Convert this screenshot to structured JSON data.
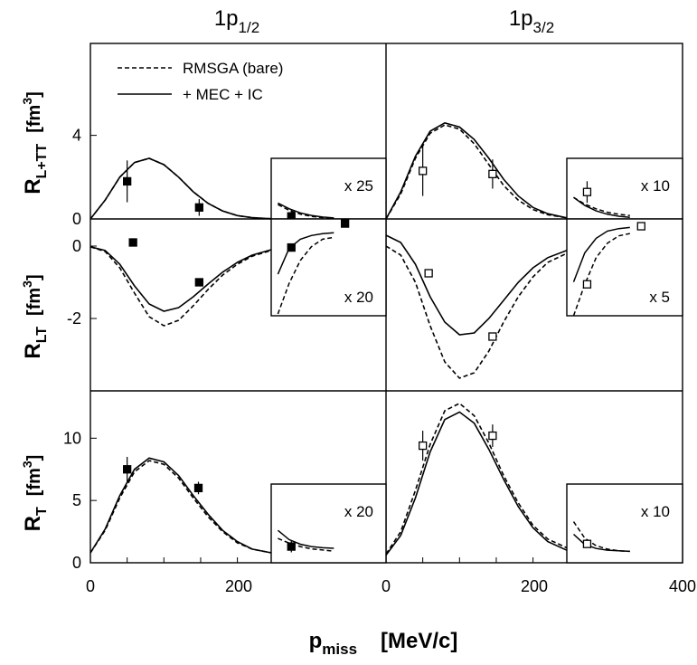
{
  "figure": {
    "col_titles": [
      {
        "main": "1p",
        "sub": "1/2"
      },
      {
        "main": "1p",
        "sub": "3/2"
      }
    ],
    "row_labels": [
      {
        "main": "R",
        "sub": "L+TT",
        "unit": "[fm",
        "unit_sup": "3",
        "unit_close": "]"
      },
      {
        "main": "R",
        "sub": "LT",
        "unit": "[fm",
        "unit_sup": "3",
        "unit_close": "]"
      },
      {
        "main": "R",
        "sub": "T",
        "unit": "[fm",
        "unit_sup": "3",
        "unit_close": "]"
      }
    ],
    "xlabel": {
      "main": "p",
      "sub": "miss",
      "unit": "[MeV/c]"
    },
    "legend": [
      {
        "label": "RMSGA (bare)",
        "style": "dashed"
      },
      {
        "label": "+ MEC + IC",
        "style": "solid"
      }
    ]
  },
  "chart_data": [
    {
      "panel": "1p1/2 R_L+TT",
      "type": "line",
      "state": "1p1/2",
      "response": "R_L+TT",
      "xlim": [
        0,
        246
      ],
      "ylim": [
        0,
        8.4
      ],
      "yticks": [
        {
          "v": 0,
          "label": "0"
        },
        {
          "v": 4,
          "label": "4"
        }
      ],
      "series": [
        {
          "name": "RMSGA (bare)",
          "style": "dashed",
          "x": [
            0,
            20,
            40,
            60,
            80,
            100,
            120,
            140,
            160,
            180,
            200,
            220,
            246
          ],
          "y": [
            0,
            0.9,
            2.0,
            2.7,
            2.9,
            2.6,
            2.0,
            1.3,
            0.75,
            0.38,
            0.16,
            0.06,
            0.01
          ]
        },
        {
          "name": "+ MEC + IC",
          "style": "solid",
          "x": [
            0,
            20,
            40,
            60,
            80,
            100,
            120,
            140,
            160,
            180,
            200,
            220,
            246
          ],
          "y": [
            0,
            0.9,
            2.0,
            2.7,
            2.9,
            2.6,
            2.0,
            1.3,
            0.75,
            0.38,
            0.16,
            0.06,
            0.01
          ]
        }
      ],
      "points": [
        {
          "x": 50,
          "y": 1.8,
          "err": 1.0,
          "filled": true
        },
        {
          "x": 148,
          "y": 0.55,
          "err": 0.4,
          "filled": true
        }
      ],
      "inset": {
        "label": "x 25",
        "xlim": [
          246,
          400
        ],
        "ylim": [
          0,
          0.19
        ],
        "series": [
          {
            "name": "RMSGA (bare)",
            "style": "dashed",
            "x": [
              255,
              270,
              285,
              300,
              315,
              330
            ],
            "y": [
              0.045,
              0.027,
              0.015,
              0.008,
              0.004,
              0.002
            ]
          },
          {
            "name": "+ MEC + IC",
            "style": "solid",
            "x": [
              255,
              270,
              285,
              300,
              315,
              330
            ],
            "y": [
              0.05,
              0.032,
              0.019,
              0.011,
              0.006,
              0.003
            ]
          }
        ],
        "points": [
          {
            "x": 273,
            "y": 0.008,
            "err": 0.02,
            "filled": true
          }
        ]
      }
    },
    {
      "panel": "1p3/2 R_L+TT",
      "type": "line",
      "state": "1p3/2",
      "response": "R_L+TT",
      "xlim": [
        0,
        246
      ],
      "ylim": [
        0,
        8.4
      ],
      "yticks": [],
      "series": [
        {
          "name": "RMSGA (bare)",
          "style": "dashed",
          "x": [
            0,
            20,
            40,
            60,
            80,
            100,
            120,
            140,
            160,
            180,
            200,
            220,
            246
          ],
          "y": [
            0,
            1.2,
            2.9,
            4.1,
            4.5,
            4.3,
            3.6,
            2.6,
            1.6,
            0.9,
            0.45,
            0.2,
            0.05
          ]
        },
        {
          "name": "+ MEC + IC",
          "style": "solid",
          "x": [
            0,
            20,
            40,
            60,
            80,
            100,
            120,
            140,
            160,
            180,
            200,
            220,
            246
          ],
          "y": [
            0,
            1.3,
            3.0,
            4.2,
            4.6,
            4.4,
            3.8,
            2.9,
            1.9,
            1.1,
            0.55,
            0.25,
            0.05
          ]
        }
      ],
      "points": [
        {
          "x": 50,
          "y": 2.3,
          "err": 1.2,
          "filled": false
        },
        {
          "x": 145,
          "y": 2.15,
          "err": 0.7,
          "filled": false
        }
      ],
      "inset": {
        "label": "x 10",
        "xlim": [
          246,
          400
        ],
        "ylim": [
          0,
          0.45
        ],
        "series": [
          {
            "name": "RMSGA (bare)",
            "style": "dashed",
            "x": [
              255,
              270,
              285,
              300,
              315,
              330
            ],
            "y": [
              0.16,
              0.11,
              0.075,
              0.05,
              0.035,
              0.025
            ]
          },
          {
            "name": "+ MEC + IC",
            "style": "solid",
            "x": [
              255,
              270,
              285,
              300,
              315,
              330
            ],
            "y": [
              0.16,
              0.1,
              0.06,
              0.035,
              0.02,
              0.012
            ]
          }
        ],
        "points": [
          {
            "x": 273,
            "y": 0.2,
            "err": 0.08,
            "filled": false
          }
        ]
      }
    },
    {
      "panel": "1p1/2 R_LT",
      "type": "line",
      "state": "1p1/2",
      "response": "R_LT",
      "xlim": [
        0,
        246
      ],
      "ylim": [
        -4.0,
        0.75
      ],
      "yticks": [
        {
          "v": 0,
          "label": "0"
        },
        {
          "v": -2,
          "label": "-2"
        }
      ],
      "series": [
        {
          "name": "RMSGA (bare)",
          "style": "dashed",
          "x": [
            0,
            20,
            40,
            60,
            80,
            100,
            120,
            140,
            160,
            180,
            200,
            220,
            246
          ],
          "y": [
            -0.02,
            -0.15,
            -0.6,
            -1.3,
            -1.95,
            -2.2,
            -2.05,
            -1.65,
            -1.2,
            -0.8,
            -0.5,
            -0.28,
            -0.12
          ]
        },
        {
          "name": "+ MEC + IC",
          "style": "solid",
          "x": [
            0,
            20,
            40,
            60,
            80,
            100,
            120,
            140,
            160,
            180,
            200,
            220,
            246
          ],
          "y": [
            -0.02,
            -0.12,
            -0.5,
            -1.1,
            -1.6,
            -1.8,
            -1.7,
            -1.4,
            -1.05,
            -0.72,
            -0.45,
            -0.25,
            -0.1
          ]
        }
      ],
      "points": [
        {
          "x": 58,
          "y": 0.1,
          "err": 0,
          "filled": true
        },
        {
          "x": 148,
          "y": -1.0,
          "err": 0,
          "filled": true
        }
      ],
      "inset": {
        "label": "x 20",
        "xlim": [
          246,
          400
        ],
        "ylim": [
          -0.105,
          0.0
        ],
        "series": [
          {
            "name": "RMSGA (bare)",
            "style": "dashed",
            "x": [
              255,
              270,
              285,
              300,
              315,
              330
            ],
            "y": [
              -0.103,
              -0.07,
              -0.045,
              -0.03,
              -0.022,
              -0.02
            ]
          },
          {
            "name": "+ MEC + IC",
            "style": "solid",
            "x": [
              255,
              270,
              285,
              300,
              315,
              330
            ],
            "y": [
              -0.06,
              -0.032,
              -0.022,
              -0.018,
              -0.016,
              -0.015
            ]
          }
        ],
        "points": [
          {
            "x": 273,
            "y": -0.031,
            "err": 0.004,
            "filled": true
          },
          {
            "x": 345,
            "y": -0.005,
            "err": 0,
            "filled": true
          }
        ]
      }
    },
    {
      "panel": "1p3/2 R_LT",
      "type": "line",
      "state": "1p3/2",
      "response": "R_LT",
      "xlim": [
        0,
        246
      ],
      "ylim": [
        -4.0,
        0.75
      ],
      "yticks": [],
      "series": [
        {
          "name": "RMSGA (bare)",
          "style": "dashed",
          "x": [
            0,
            20,
            40,
            60,
            80,
            100,
            120,
            140,
            160,
            180,
            200,
            220,
            246
          ],
          "y": [
            0.0,
            -0.25,
            -1.0,
            -2.2,
            -3.2,
            -3.65,
            -3.5,
            -2.9,
            -2.1,
            -1.4,
            -0.85,
            -0.45,
            -0.2
          ]
        },
        {
          "name": "+ MEC + IC",
          "style": "solid",
          "x": [
            0,
            20,
            40,
            60,
            80,
            100,
            120,
            140,
            160,
            180,
            200,
            220,
            246
          ],
          "y": [
            0.3,
            0.1,
            -0.5,
            -1.4,
            -2.1,
            -2.45,
            -2.4,
            -2.0,
            -1.5,
            -1.0,
            -0.6,
            -0.32,
            -0.12
          ]
        }
      ],
      "points": [
        {
          "x": 58,
          "y": -0.75,
          "err": 0,
          "filled": false
        },
        {
          "x": 145,
          "y": -2.5,
          "err": 0,
          "filled": false
        }
      ],
      "inset": {
        "label": "x 5",
        "xlim": [
          246,
          400
        ],
        "ylim": [
          -0.4,
          0.0
        ],
        "series": [
          {
            "name": "RMSGA (bare)",
            "style": "dashed",
            "x": [
              255,
              270,
              285,
              300,
              315,
              330
            ],
            "y": [
              -0.4,
              -0.27,
              -0.16,
              -0.1,
              -0.07,
              -0.06
            ]
          },
          {
            "name": "+ MEC + IC",
            "style": "solid",
            "x": [
              255,
              270,
              285,
              300,
              315,
              330
            ],
            "y": [
              -0.26,
              -0.14,
              -0.08,
              -0.05,
              -0.04,
              -0.035
            ]
          }
        ],
        "points": [
          {
            "x": 273,
            "y": -0.27,
            "err": 0.01,
            "filled": false
          },
          {
            "x": 345,
            "y": -0.03,
            "err": 0,
            "filled": false
          }
        ]
      }
    },
    {
      "panel": "1p1/2 R_T",
      "type": "line",
      "state": "1p1/2",
      "response": "R_T",
      "xlim": [
        0,
        246
      ],
      "ylim": [
        0,
        13.8
      ],
      "yticks": [
        {
          "v": 0,
          "label": "0"
        },
        {
          "v": 5,
          "label": "5"
        },
        {
          "v": 10,
          "label": "10"
        }
      ],
      "series": [
        {
          "name": "RMSGA (bare)",
          "style": "dashed",
          "x": [
            0,
            20,
            40,
            60,
            80,
            100,
            120,
            140,
            160,
            180,
            200,
            220,
            246
          ],
          "y": [
            0.8,
            2.6,
            5.2,
            7.3,
            8.2,
            7.9,
            6.8,
            5.2,
            3.7,
            2.5,
            1.6,
            1.1,
            0.8
          ]
        },
        {
          "name": "+ MEC + IC",
          "style": "solid",
          "x": [
            0,
            20,
            40,
            60,
            80,
            100,
            120,
            140,
            160,
            180,
            200,
            220,
            246
          ],
          "y": [
            0.8,
            2.7,
            5.4,
            7.5,
            8.4,
            8.1,
            7.0,
            5.4,
            3.9,
            2.6,
            1.7,
            1.1,
            0.8
          ]
        }
      ],
      "points": [
        {
          "x": 50,
          "y": 7.5,
          "err": 1.0,
          "filled": true
        },
        {
          "x": 147,
          "y": 6.0,
          "err": 0.5,
          "filled": true
        }
      ],
      "inset": {
        "label": "x 20",
        "xlim": [
          246,
          400
        ],
        "ylim": [
          0,
          0.68
        ],
        "series": [
          {
            "name": "RMSGA (bare)",
            "style": "dashed",
            "x": [
              255,
              270,
              285,
              300,
              315,
              330
            ],
            "y": [
              0.21,
              0.17,
              0.14,
              0.12,
              0.11,
              0.1
            ]
          },
          {
            "name": "+ MEC + IC",
            "style": "solid",
            "x": [
              255,
              270,
              285,
              300,
              315,
              330
            ],
            "y": [
              0.28,
              0.2,
              0.16,
              0.14,
              0.13,
              0.125
            ]
          }
        ],
        "points": [
          {
            "x": 273,
            "y": 0.14,
            "err": 0.05,
            "filled": true
          }
        ]
      }
    },
    {
      "panel": "1p3/2 R_T",
      "type": "line",
      "state": "1p3/2",
      "response": "R_T",
      "xlim": [
        0,
        246
      ],
      "ylim": [
        0,
        13.8
      ],
      "yticks": [],
      "series": [
        {
          "name": "RMSGA (bare)",
          "style": "dashed",
          "x": [
            0,
            20,
            40,
            60,
            80,
            100,
            120,
            140,
            160,
            180,
            200,
            220,
            246
          ],
          "y": [
            0.7,
            2.5,
            5.8,
            9.5,
            12.2,
            12.8,
            11.8,
            9.6,
            7.0,
            4.8,
            3.0,
            1.9,
            1.2
          ]
        },
        {
          "name": "+ MEC + IC",
          "style": "solid",
          "x": [
            0,
            20,
            40,
            60,
            80,
            100,
            120,
            140,
            160,
            180,
            200,
            220,
            246
          ],
          "y": [
            0.6,
            2.2,
            5.2,
            8.9,
            11.5,
            12.1,
            11.2,
            9.1,
            6.7,
            4.5,
            2.8,
            1.7,
            1.0
          ]
        }
      ],
      "points": [
        {
          "x": 50,
          "y": 9.4,
          "err": 1.2,
          "filled": false
        },
        {
          "x": 145,
          "y": 10.2,
          "err": 0.9,
          "filled": false
        }
      ],
      "inset": {
        "label": "x 10",
        "xlim": [
          246,
          400
        ],
        "ylim": [
          0,
          1.38
        ],
        "series": [
          {
            "name": "RMSGA (bare)",
            "style": "dashed",
            "x": [
              255,
              270,
              285,
              300,
              315,
              330
            ],
            "y": [
              0.72,
              0.43,
              0.3,
              0.24,
              0.21,
              0.2
            ]
          },
          {
            "name": "+ MEC + IC",
            "style": "solid",
            "x": [
              255,
              270,
              285,
              300,
              315,
              330
            ],
            "y": [
              0.5,
              0.32,
              0.25,
              0.22,
              0.21,
              0.2
            ]
          }
        ],
        "points": [
          {
            "x": 273,
            "y": 0.33,
            "err": 0.06,
            "filled": false
          }
        ]
      }
    }
  ],
  "xaxis": {
    "ticks": [
      {
        "v": 0,
        "label": "0"
      },
      {
        "v": 200,
        "label": "200"
      },
      {
        "v": 400,
        "label": "400"
      }
    ]
  }
}
